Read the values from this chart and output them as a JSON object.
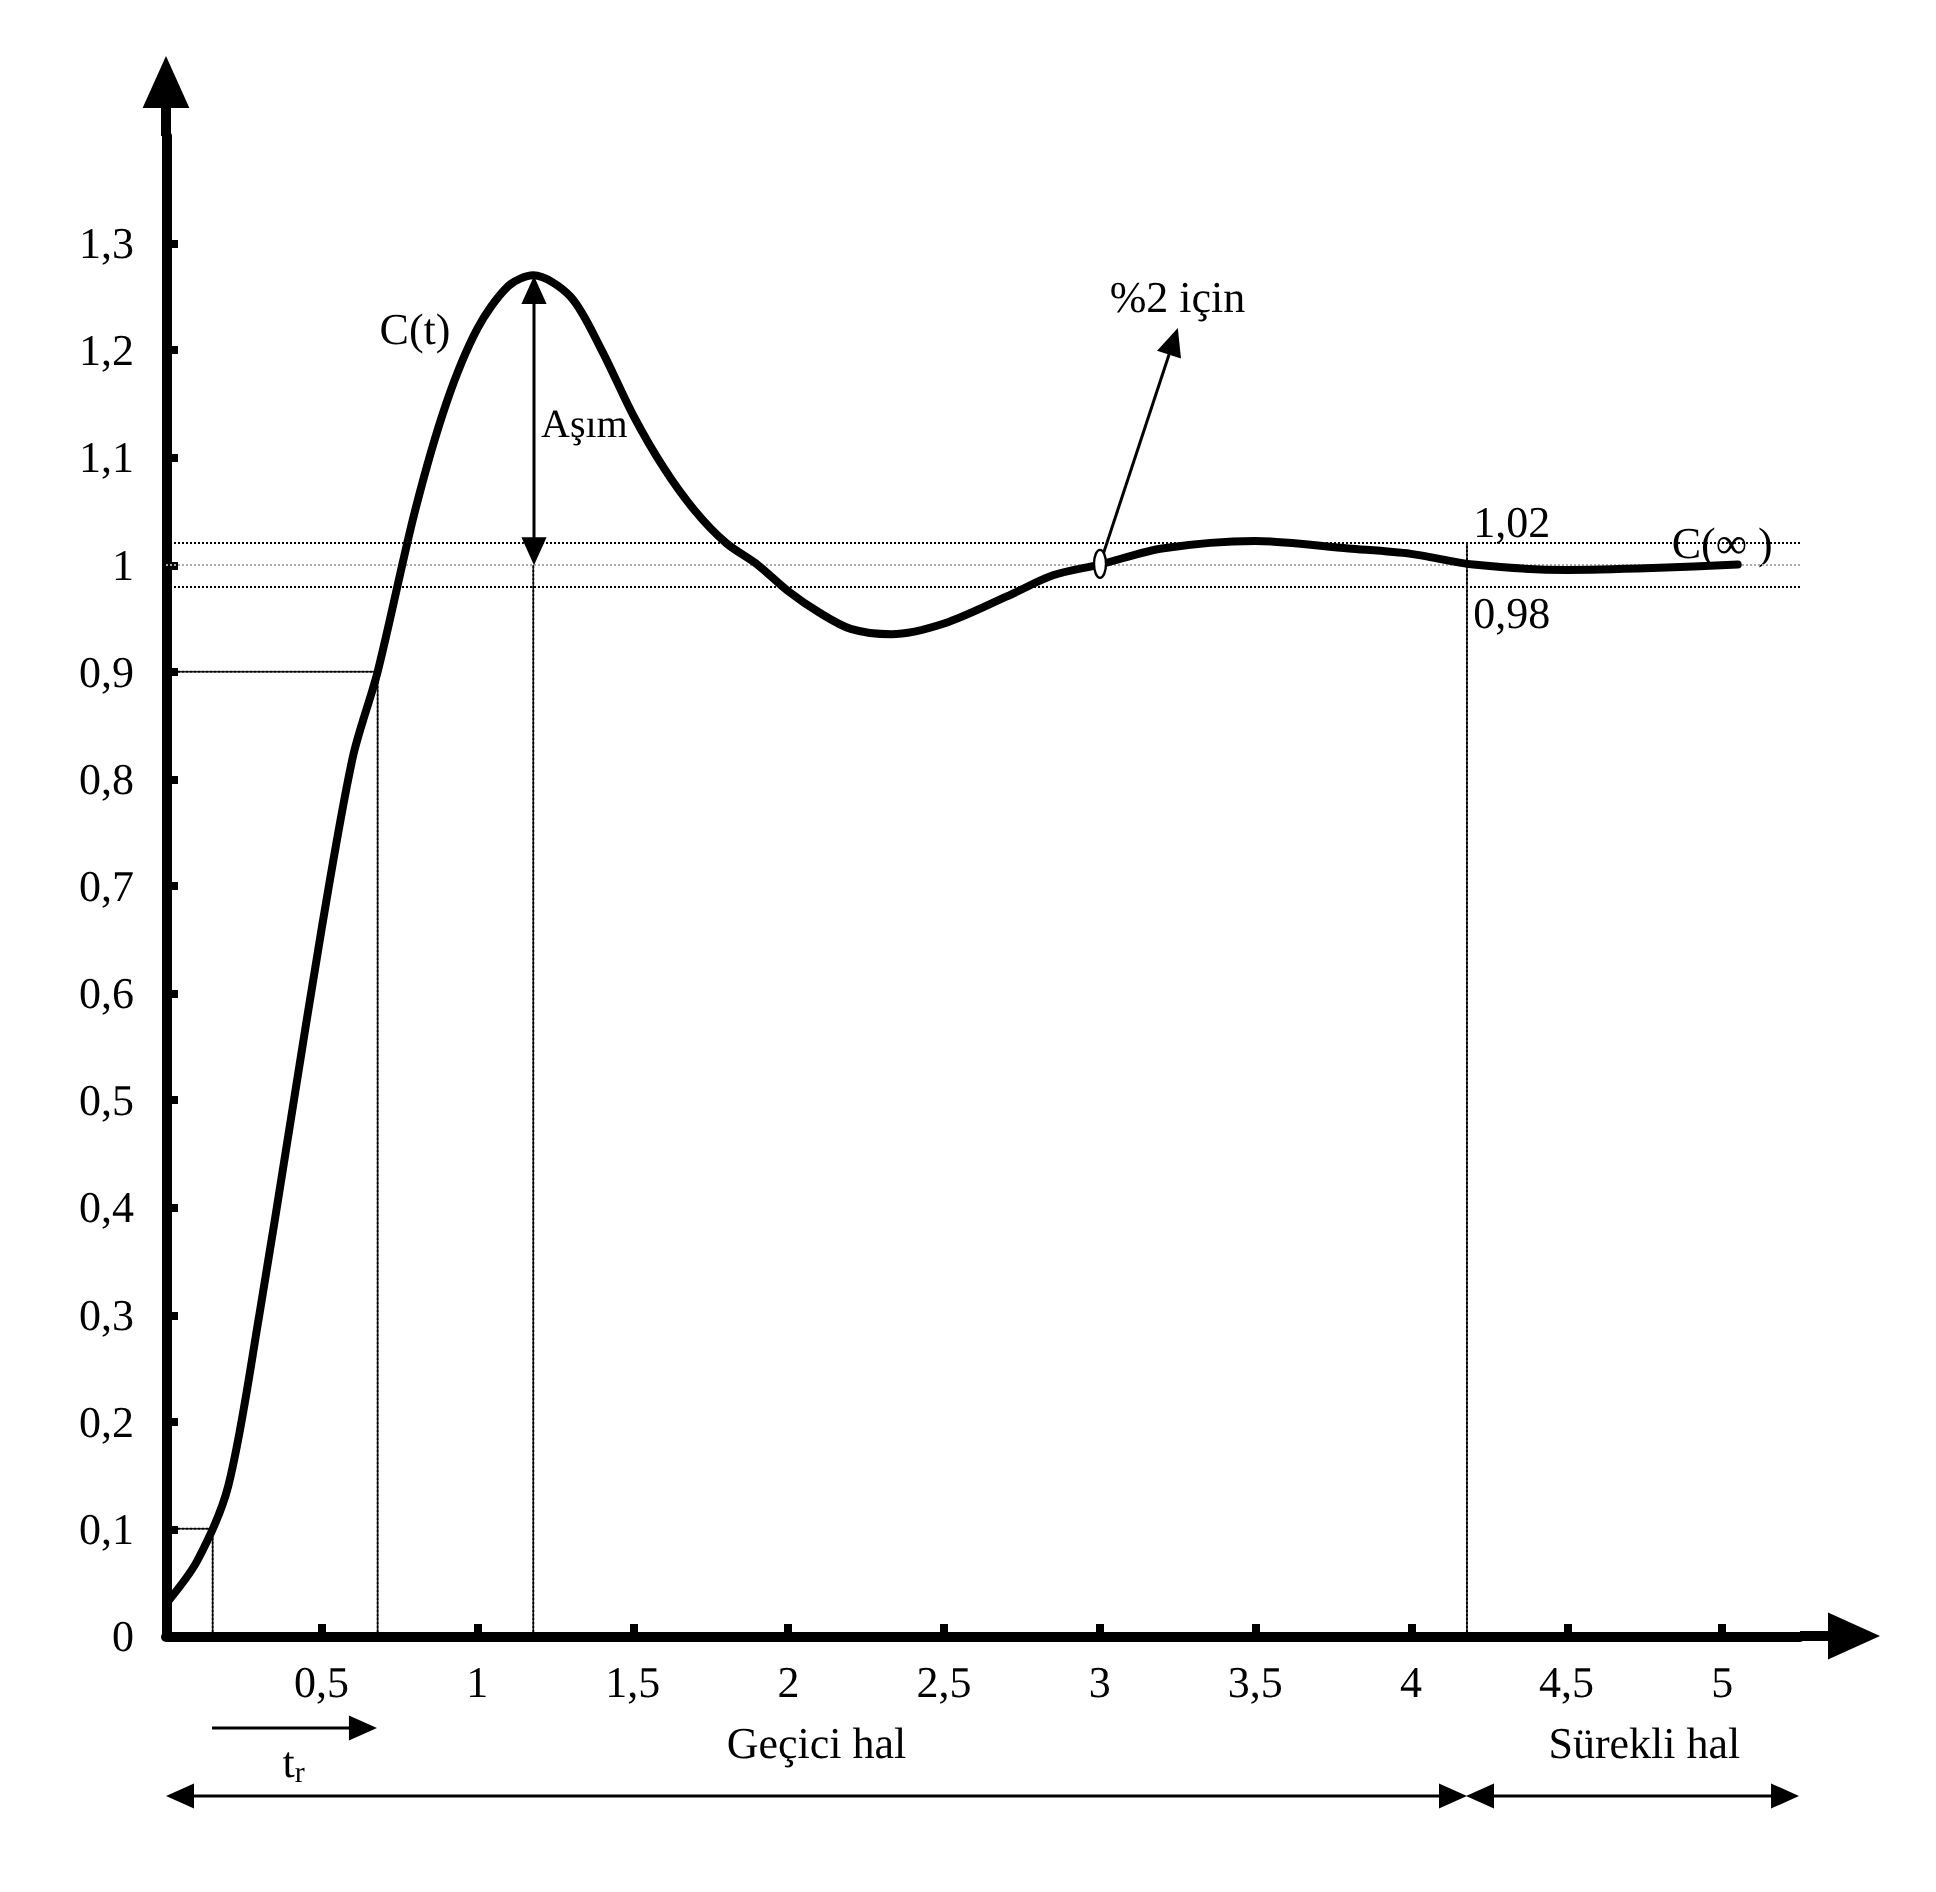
{
  "chart_data": {
    "type": "line",
    "grid": false,
    "marker": "none",
    "line_style": "solid",
    "xlim": [
      0,
      5.25
    ],
    "ylim": [
      0,
      1.4
    ],
    "xticks": [
      {
        "value": 0.5,
        "label": "0,5"
      },
      1,
      {
        "value": 1.5,
        "label": "1,5"
      },
      2,
      {
        "value": 2.5,
        "label": "2,5"
      },
      3,
      {
        "value": 3.5,
        "label": "3,5"
      },
      4,
      {
        "value": 4.5,
        "label": "4,5"
      },
      5
    ],
    "yticks": [
      0,
      {
        "value": 0.1,
        "label": "0,1"
      },
      {
        "value": 0.2,
        "label": "0,2"
      },
      {
        "value": 0.3,
        "label": "0,3"
      },
      {
        "value": 0.4,
        "label": "0,4"
      },
      {
        "value": 0.5,
        "label": "0,5"
      },
      {
        "value": 0.6,
        "label": "0,6"
      },
      {
        "value": 0.7,
        "label": "0,7"
      },
      {
        "value": 0.8,
        "label": "0,8"
      },
      {
        "value": 0.9,
        "label": "0,9"
      },
      1,
      {
        "value": 1.1,
        "label": "1,1"
      },
      {
        "value": 1.2,
        "label": "1,2"
      },
      {
        "value": 1.3,
        "label": "1,3"
      }
    ],
    "series": [
      {
        "color": "#000000",
        "x": [
          0,
          0.1,
          0.2,
          0.3,
          0.4,
          0.5,
          0.6,
          0.68,
          0.8,
          0.9,
          1.0,
          1.1,
          1.18,
          1.3,
          1.4,
          1.5,
          1.6,
          1.7,
          1.8,
          1.9,
          2.0,
          2.1,
          2.2,
          2.33,
          2.5,
          2.7,
          2.85,
          3.0,
          3.2,
          3.5,
          3.8,
          4.0,
          4.2,
          4.5,
          4.8,
          5.05
        ],
        "values": [
          0.03,
          0.07,
          0.14,
          0.3,
          0.48,
          0.66,
          0.82,
          0.9,
          1.05,
          1.15,
          1.22,
          1.26,
          1.27,
          1.25,
          1.2,
          1.14,
          1.09,
          1.05,
          1.02,
          1.0,
          0.975,
          0.955,
          0.94,
          0.935,
          0.945,
          0.97,
          0.99,
          1.0,
          1.015,
          1.022,
          1.015,
          1.01,
          1.0,
          0.995,
          0.997,
          1.0
        ]
      },
      {
        "color": "#000000",
        "line_style": "dotted",
        "x": [
          0,
          0.15
        ],
        "values": [
          0.1,
          0.1
        ]
      },
      {
        "color": "#000000",
        "line_style": "dotted",
        "x": [
          0,
          0.68
        ],
        "values": [
          0.9,
          0.9
        ]
      },
      {
        "color": "#000000",
        "line_style": "dotted",
        "x": [
          0.15,
          0.15
        ],
        "values": [
          0,
          0.1
        ]
      },
      {
        "color": "#000000",
        "line_style": "dotted",
        "x": [
          0.68,
          0.68
        ],
        "values": [
          0,
          0.9
        ]
      },
      {
        "color": "#000000",
        "line_style": "dotted",
        "x": [
          1.18,
          1.18
        ],
        "values": [
          0,
          1
        ]
      },
      {
        "color": "#000000",
        "line_style": "dotted",
        "x": [
          4.18,
          4.18
        ],
        "values": [
          0,
          1.02
        ]
      }
    ],
    "ref_lines": [
      {
        "axis": "y",
        "value": 1.02,
        "color": "#000000",
        "line_style": "dotted"
      },
      {
        "axis": "y",
        "value": 0.98,
        "color": "#000000",
        "line_style": "dotted"
      },
      {
        "axis": "y",
        "value": 1,
        "color": "#aaaaaa",
        "line_style": "dotted"
      }
    ],
    "annotations": [
      "C(t)",
      "Aşım",
      {
        "text": "%2 için",
        "x": 3,
        "y": 1
      },
      "1,02",
      "0,98",
      {
        "text": "C(∞ )",
        "x": 5.0,
        "y": 1.02
      },
      "t$_{r}$",
      "Geçici hal",
      "Sürekli hal"
    ]
  }
}
